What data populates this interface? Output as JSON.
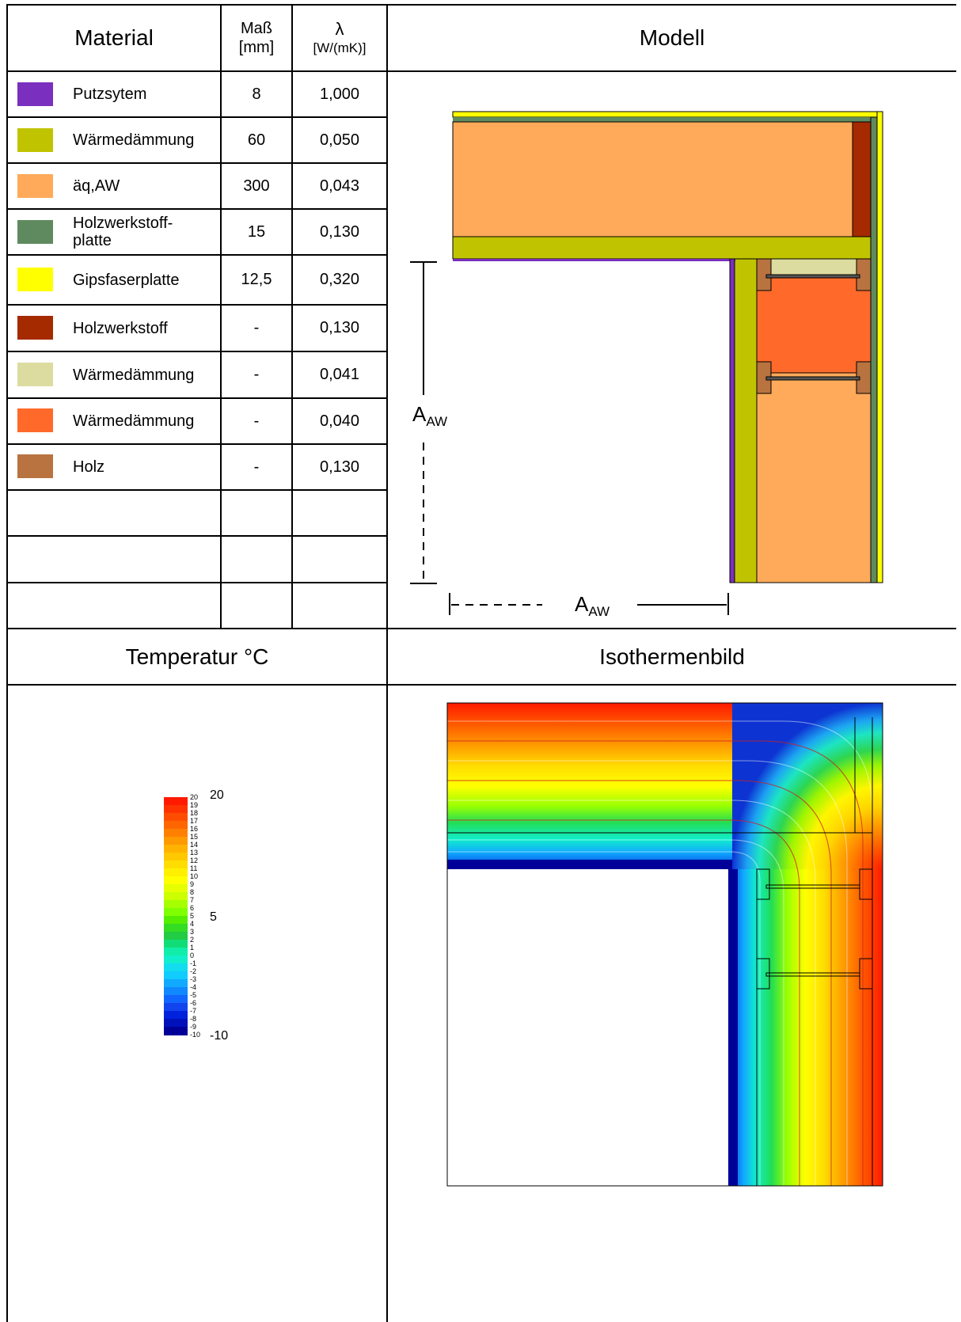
{
  "headers": {
    "material": "Material",
    "mass_line1": "Maß",
    "mass_line2": "[mm]",
    "lambda_symbol": "λ",
    "lambda_unit": "[W/(mK)]",
    "modell": "Modell",
    "temperatur": "Temperatur °C",
    "isothermenbild": "Isothermenbild"
  },
  "materials": [
    {
      "color": "#7b2fbe",
      "name": "Putzsytem",
      "mass": "8",
      "lambda": "1,000"
    },
    {
      "color": "#c0c400",
      "name": "Wärmedämmung",
      "mass": "60",
      "lambda": "0,050"
    },
    {
      "color": "#ffaa5a",
      "name": "äq,AW",
      "mass": "300",
      "lambda": "0,043"
    },
    {
      "color": "#5f8a5f",
      "name": "Holzwerkstoff-\nplatte",
      "mass": "15",
      "lambda": "0,130"
    },
    {
      "color": "#ffff00",
      "name": "Gipsfaserplatte",
      "mass": "12,5",
      "lambda": "0,320"
    },
    {
      "color": "#a52a00",
      "name": "Holzwerkstoff",
      "mass": "-",
      "lambda": "0,130"
    },
    {
      "color": "#dcdca0",
      "name": "Wärmedämmung",
      "mass": "-",
      "lambda": "0,041"
    },
    {
      "color": "#ff6a2a",
      "name": "Wärmedämmung",
      "mass": "-",
      "lambda": "0,040"
    },
    {
      "color": "#b87340",
      "name": "Holz",
      "mass": "-",
      "lambda": "0,130"
    }
  ],
  "dimension_label": {
    "main": "A",
    "sub": "AW"
  },
  "temperature_scale": {
    "max_label": "20",
    "mid_label": "5",
    "min_label": "-10",
    "ticks": [
      "20",
      "19",
      "18",
      "17",
      "16",
      "15",
      "14",
      "13",
      "12",
      "11",
      "10",
      "9",
      "8",
      "7",
      "6",
      "5",
      "4",
      "3",
      "2",
      "1",
      "0",
      "-1",
      "-2",
      "-3",
      "-4",
      "-5",
      "-6",
      "-7",
      "-8",
      "-9",
      "-10"
    ],
    "colors": [
      "#ff1a00",
      "#ff3300",
      "#ff4d00",
      "#ff6600",
      "#ff8000",
      "#ff9900",
      "#ffb300",
      "#ffc800",
      "#ffdd00",
      "#fff000",
      "#ffff00",
      "#e6ff00",
      "#ccff00",
      "#a6ff00",
      "#80ff00",
      "#55ee00",
      "#33dd22",
      "#22cc44",
      "#11dd77",
      "#11eeaa",
      "#11eecc",
      "#11ddee",
      "#11ccff",
      "#11aaff",
      "#1188ff",
      "#1166ff",
      "#1144ee",
      "#0022dd",
      "#0011bb",
      "#000099"
    ]
  }
}
